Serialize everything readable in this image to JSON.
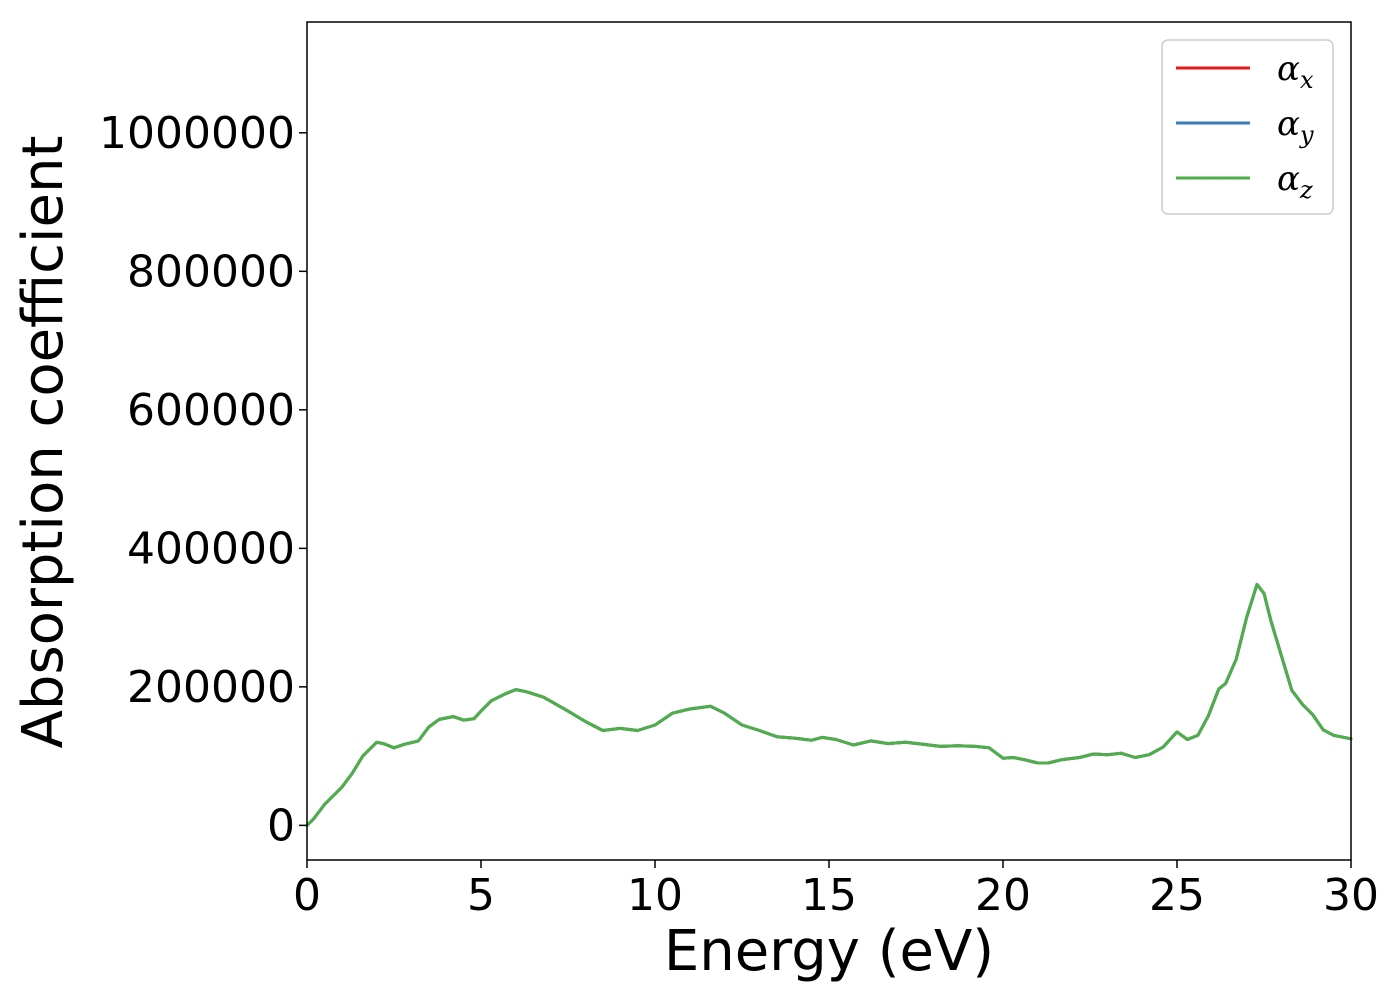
{
  "chart_data": {
    "type": "line",
    "title": "",
    "xlabel": "Energy (eV)",
    "ylabel": "Absorption coefficient",
    "xlim": [
      0,
      30
    ],
    "ylim": [
      -50000,
      1160000
    ],
    "xticks": [
      0,
      5,
      10,
      15,
      20,
      25,
      30
    ],
    "xtick_labels": [
      "0",
      "5",
      "10",
      "15",
      "20",
      "25",
      "30"
    ],
    "yticks": [
      0,
      200000,
      400000,
      600000,
      800000,
      1000000
    ],
    "ytick_labels": [
      "0",
      "200000",
      "400000",
      "600000",
      "800000",
      "1000000"
    ],
    "grid": false,
    "legend_position": "top-right",
    "x": [
      0,
      0.2,
      0.5,
      1.0,
      1.3,
      1.6,
      2.0,
      2.2,
      2.5,
      2.8,
      3.2,
      3.5,
      3.8,
      4.2,
      4.5,
      4.8,
      5.0,
      5.3,
      5.7,
      6.0,
      6.3,
      6.8,
      7.5,
      8.0,
      8.5,
      9.0,
      9.5,
      10.0,
      10.5,
      11.0,
      11.3,
      11.6,
      12.0,
      12.5,
      13.0,
      13.5,
      14.0,
      14.5,
      14.8,
      15.2,
      15.7,
      16.2,
      16.7,
      17.2,
      17.7,
      18.2,
      18.7,
      19.2,
      19.6,
      20.0,
      20.3,
      20.6,
      21.0,
      21.3,
      21.7,
      22.2,
      22.6,
      23.0,
      23.4,
      23.8,
      24.2,
      24.6,
      25.0,
      25.3,
      25.6,
      25.9,
      26.2,
      26.4,
      26.7,
      27.0,
      27.3,
      27.5,
      27.7,
      28.0,
      28.3,
      28.6,
      28.9,
      29.2,
      29.5,
      30.0
    ],
    "series": [
      {
        "name": "x",
        "color": "#e41a1c",
        "values": [
          0,
          10000,
          30000,
          55000,
          75000,
          100000,
          120000,
          118000,
          112000,
          117000,
          122000,
          142000,
          153000,
          157000,
          152000,
          154000,
          165000,
          180000,
          190000,
          196000,
          193000,
          185000,
          165000,
          150000,
          137000,
          140000,
          137000,
          145000,
          162000,
          168000,
          170000,
          172000,
          162000,
          145000,
          137000,
          128000,
          126000,
          123000,
          127000,
          124000,
          116000,
          122000,
          118000,
          120000,
          117000,
          114000,
          115000,
          114000,
          112000,
          97000,
          98000,
          95000,
          90000,
          90000,
          95000,
          98000,
          103000,
          102000,
          104000,
          98000,
          102000,
          113000,
          135000,
          124000,
          130000,
          158000,
          197000,
          205000,
          240000,
          300000,
          348000,
          335000,
          295000,
          245000,
          195000,
          175000,
          160000,
          138000,
          130000,
          125000
        ]
      },
      {
        "name": "y",
        "color": "#377eb8",
        "values": [
          0,
          10000,
          30000,
          55000,
          75000,
          100000,
          120000,
          118000,
          112000,
          117000,
          122000,
          142000,
          153000,
          157000,
          152000,
          154000,
          165000,
          180000,
          190000,
          196000,
          193000,
          185000,
          165000,
          150000,
          137000,
          140000,
          137000,
          145000,
          162000,
          168000,
          170000,
          172000,
          162000,
          145000,
          137000,
          128000,
          126000,
          123000,
          127000,
          124000,
          116000,
          122000,
          118000,
          120000,
          117000,
          114000,
          115000,
          114000,
          112000,
          97000,
          98000,
          95000,
          90000,
          90000,
          95000,
          98000,
          103000,
          102000,
          104000,
          98000,
          102000,
          113000,
          135000,
          124000,
          130000,
          158000,
          197000,
          205000,
          240000,
          300000,
          348000,
          335000,
          295000,
          245000,
          195000,
          175000,
          160000,
          138000,
          130000,
          125000
        ]
      },
      {
        "name": "z",
        "color": "#4daf4a",
        "values": [
          0,
          10000,
          30000,
          55000,
          75000,
          100000,
          120000,
          118000,
          112000,
          117000,
          122000,
          142000,
          153000,
          157000,
          152000,
          154000,
          165000,
          180000,
          190000,
          196000,
          193000,
          185000,
          165000,
          150000,
          137000,
          140000,
          137000,
          145000,
          162000,
          168000,
          170000,
          172000,
          162000,
          145000,
          137000,
          128000,
          126000,
          123000,
          127000,
          124000,
          116000,
          122000,
          118000,
          120000,
          117000,
          114000,
          115000,
          114000,
          112000,
          97000,
          98000,
          95000,
          90000,
          90000,
          95000,
          98000,
          103000,
          102000,
          104000,
          98000,
          102000,
          113000,
          135000,
          124000,
          130000,
          158000,
          197000,
          205000,
          240000,
          300000,
          348000,
          335000,
          295000,
          245000,
          195000,
          175000,
          160000,
          138000,
          130000,
          125000
        ]
      }
    ],
    "legend": [
      {
        "symbol": "α",
        "sub": "x"
      },
      {
        "symbol": "α",
        "sub": "y"
      },
      {
        "symbol": "α",
        "sub": "z"
      }
    ]
  }
}
